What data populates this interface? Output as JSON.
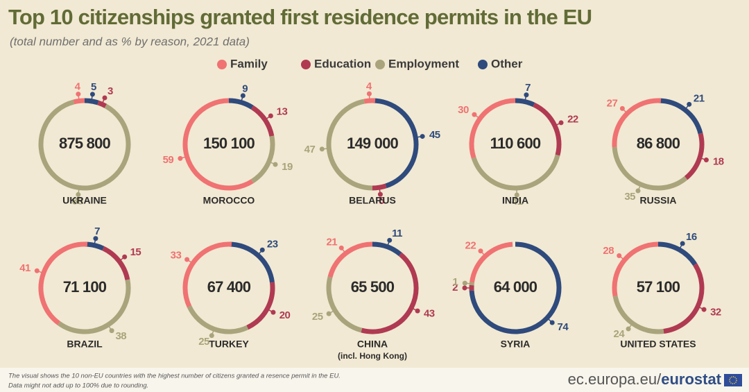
{
  "title": "Top 10 citizenships granted first residence permits in the EU",
  "subtitle": "(total number and as % by reason, 2021 data)",
  "legend": [
    {
      "name": "Family",
      "color": "#f07272"
    },
    {
      "name": "Education",
      "color": "#b03a52"
    },
    {
      "name": "Employment",
      "color": "#a9a47b"
    },
    {
      "name": "Other",
      "color": "#2f4a7c"
    }
  ],
  "chart_data": [
    {
      "type": "donut",
      "title": "UKRAINE",
      "total": {
        "value": 875800,
        "label": "875 800"
      },
      "values": [
        4,
        3,
        88,
        5
      ]
    },
    {
      "type": "donut",
      "title": "MOROCCO",
      "total": {
        "value": 150100,
        "label": "150 100"
      },
      "values": [
        59,
        13,
        19,
        9
      ]
    },
    {
      "type": "donut",
      "title": "BELARUS",
      "total": {
        "value": 149000,
        "label": "149 000"
      },
      "values": [
        4,
        5,
        47,
        45
      ]
    },
    {
      "type": "donut",
      "title": "INDIA",
      "total": {
        "value": 110600,
        "label": "110 600"
      },
      "values": [
        30,
        22,
        41,
        7
      ]
    },
    {
      "type": "donut",
      "title": "RUSSIA",
      "total": {
        "value": 86800,
        "label": "86 800"
      },
      "values": [
        27,
        18,
        35,
        21
      ]
    },
    {
      "type": "donut",
      "title": "BRAZIL",
      "total": {
        "value": 71100,
        "label": "71 100"
      },
      "values": [
        41,
        15,
        38,
        7
      ]
    },
    {
      "type": "donut",
      "title": "TURKEY",
      "total": {
        "value": 67400,
        "label": "67 400"
      },
      "values": [
        33,
        20,
        25,
        23
      ]
    },
    {
      "type": "donut",
      "title": "CHINA",
      "subtitle": "(incl. Hong Kong)",
      "total": {
        "value": 65500,
        "label": "65 500"
      },
      "values": [
        21,
        43,
        25,
        11
      ]
    },
    {
      "type": "donut",
      "title": "SYRIA",
      "total": {
        "value": 64000,
        "label": "64 000"
      },
      "values": [
        22,
        2,
        1,
        74
      ]
    },
    {
      "type": "donut",
      "title": "UNITED STATES",
      "total": {
        "value": 57100,
        "label": "57 100"
      },
      "values": [
        28,
        32,
        24,
        16
      ]
    }
  ],
  "footnote": [
    "The visual shows the 10 non-EU countries with the highest number of citizens granted a resence permit in the EU.",
    "Data might not add up to 100% due to rounding."
  ],
  "source": {
    "domain": "ec.europa.eu/",
    "brand": "eurostat"
  }
}
